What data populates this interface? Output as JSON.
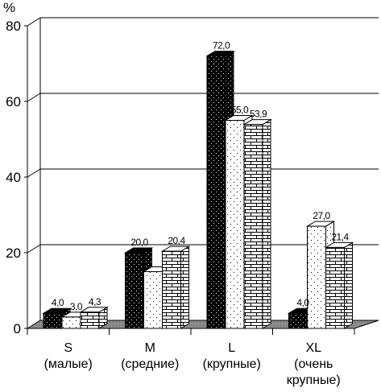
{
  "chart_data": {
    "type": "bar",
    "ylabel": "%",
    "ylim": [
      0,
      80
    ],
    "yticks": [
      "0",
      "20",
      "40",
      "60",
      "80"
    ],
    "grid": true,
    "legend": "none",
    "categories": [
      {
        "label": [
          "S",
          "(малые)"
        ]
      },
      {
        "label": [
          "M",
          "(средние)"
        ]
      },
      {
        "label": [
          "L",
          "(крупные)"
        ]
      },
      {
        "label": [
          "XL",
          "(очень",
          "крупные)"
        ]
      }
    ],
    "series": [
      {
        "pattern": "black-dots",
        "values": [
          4.0,
          20.0,
          72.0,
          4.0
        ],
        "labels": [
          "4,0",
          "20,0",
          "72,0",
          "4,0"
        ]
      },
      {
        "pattern": "white-dots",
        "values": [
          3.0,
          15.0,
          55.0,
          27.0
        ],
        "labels": [
          "3,0",
          "",
          "55,0",
          "27,0"
        ]
      },
      {
        "pattern": "brick",
        "values": [
          4.3,
          20.4,
          53.9,
          21.4
        ],
        "labels": [
          "4,3",
          "20,4",
          "53,9",
          "21,4"
        ]
      }
    ]
  }
}
